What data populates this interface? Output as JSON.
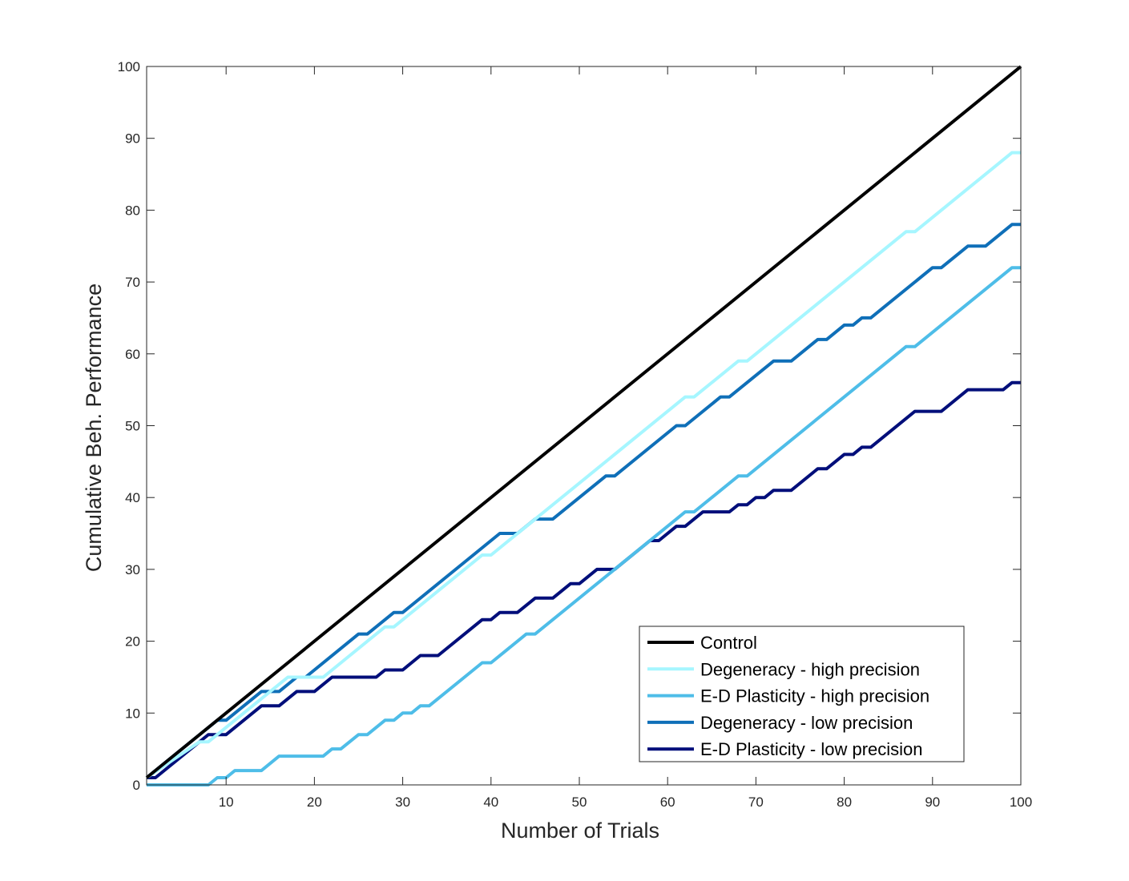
{
  "chart_data": {
    "type": "line",
    "title": "",
    "xlabel": "Number of Trials",
    "ylabel": "Cumulative Beh. Performance",
    "xlim": [
      1,
      100
    ],
    "ylim": [
      0,
      100
    ],
    "xticks": [
      10,
      20,
      30,
      40,
      50,
      60,
      70,
      80,
      90,
      100
    ],
    "yticks": [
      0,
      10,
      20,
      30,
      40,
      50,
      60,
      70,
      80,
      90,
      100
    ],
    "grid": false,
    "legend_position": "bottom-right",
    "series": [
      {
        "name": "Control",
        "color": "#000000",
        "points": [
          [
            1,
            1
          ],
          [
            100,
            100
          ]
        ]
      },
      {
        "name": "Degeneracy - high precision",
        "color": "#a6f6ff",
        "points": [
          [
            1,
            1
          ],
          [
            7,
            6
          ],
          [
            8,
            6
          ],
          [
            16,
            14
          ],
          [
            17,
            15
          ],
          [
            21,
            15
          ],
          [
            28,
            22
          ],
          [
            29,
            22
          ],
          [
            39,
            32
          ],
          [
            40,
            32
          ],
          [
            62,
            54
          ],
          [
            63,
            54
          ],
          [
            68,
            59
          ],
          [
            69,
            59
          ],
          [
            87,
            77
          ],
          [
            88,
            77
          ],
          [
            99,
            88
          ],
          [
            100,
            88
          ]
        ]
      },
      {
        "name": "E-D Plasticity - high precision",
        "color": "#4ebde8",
        "points": [
          [
            1,
            0
          ],
          [
            8,
            0
          ],
          [
            9,
            1
          ],
          [
            10,
            1
          ],
          [
            11,
            2
          ],
          [
            14,
            2
          ],
          [
            16,
            4
          ],
          [
            21,
            4
          ],
          [
            22,
            5
          ],
          [
            23,
            5
          ],
          [
            25,
            7
          ],
          [
            26,
            7
          ],
          [
            28,
            9
          ],
          [
            29,
            9
          ],
          [
            30,
            10
          ],
          [
            31,
            10
          ],
          [
            32,
            11
          ],
          [
            33,
            11
          ],
          [
            39,
            17
          ],
          [
            40,
            17
          ],
          [
            44,
            21
          ],
          [
            45,
            21
          ],
          [
            61,
            37
          ],
          [
            62,
            38
          ],
          [
            63,
            38
          ],
          [
            68,
            43
          ],
          [
            69,
            43
          ],
          [
            87,
            61
          ],
          [
            88,
            61
          ],
          [
            99,
            72
          ],
          [
            100,
            72
          ]
        ]
      },
      {
        "name": "Degeneracy - low precision",
        "color": "#0f6fb8",
        "points": [
          [
            1,
            1
          ],
          [
            9,
            9
          ],
          [
            10,
            9
          ],
          [
            14,
            13
          ],
          [
            16,
            13
          ],
          [
            18,
            15
          ],
          [
            19,
            15
          ],
          [
            25,
            21
          ],
          [
            26,
            21
          ],
          [
            29,
            24
          ],
          [
            30,
            24
          ],
          [
            41,
            35
          ],
          [
            43,
            35
          ],
          [
            45,
            37
          ],
          [
            47,
            37
          ],
          [
            53,
            43
          ],
          [
            54,
            43
          ],
          [
            61,
            50
          ],
          [
            62,
            50
          ],
          [
            66,
            54
          ],
          [
            67,
            54
          ],
          [
            72,
            59
          ],
          [
            74,
            59
          ],
          [
            77,
            62
          ],
          [
            78,
            62
          ],
          [
            80,
            64
          ],
          [
            81,
            64
          ],
          [
            82,
            65
          ],
          [
            83,
            65
          ],
          [
            90,
            72
          ],
          [
            91,
            72
          ],
          [
            94,
            75
          ],
          [
            96,
            75
          ],
          [
            99,
            78
          ],
          [
            100,
            78
          ]
        ]
      },
      {
        "name": "E-D Plasticity - low precision",
        "color": "#000e7a",
        "points": [
          [
            1,
            1
          ],
          [
            2,
            1
          ],
          [
            8,
            7
          ],
          [
            10,
            7
          ],
          [
            14,
            11
          ],
          [
            16,
            11
          ],
          [
            18,
            13
          ],
          [
            20,
            13
          ],
          [
            22,
            15
          ],
          [
            27,
            15
          ],
          [
            28,
            16
          ],
          [
            30,
            16
          ],
          [
            32,
            18
          ],
          [
            34,
            18
          ],
          [
            39,
            23
          ],
          [
            40,
            23
          ],
          [
            41,
            24
          ],
          [
            43,
            24
          ],
          [
            45,
            26
          ],
          [
            47,
            26
          ],
          [
            49,
            28
          ],
          [
            50,
            28
          ],
          [
            52,
            30
          ],
          [
            54,
            30
          ],
          [
            58,
            34
          ],
          [
            59,
            34
          ],
          [
            61,
            36
          ],
          [
            62,
            36
          ],
          [
            64,
            38
          ],
          [
            67,
            38
          ],
          [
            68,
            39
          ],
          [
            69,
            39
          ],
          [
            70,
            40
          ],
          [
            71,
            40
          ],
          [
            72,
            41
          ],
          [
            74,
            41
          ],
          [
            77,
            44
          ],
          [
            78,
            44
          ],
          [
            80,
            46
          ],
          [
            81,
            46
          ],
          [
            82,
            47
          ],
          [
            83,
            47
          ],
          [
            88,
            52
          ],
          [
            91,
            52
          ],
          [
            94,
            55
          ],
          [
            98,
            55
          ],
          [
            99,
            56
          ],
          [
            100,
            56
          ]
        ]
      }
    ]
  }
}
